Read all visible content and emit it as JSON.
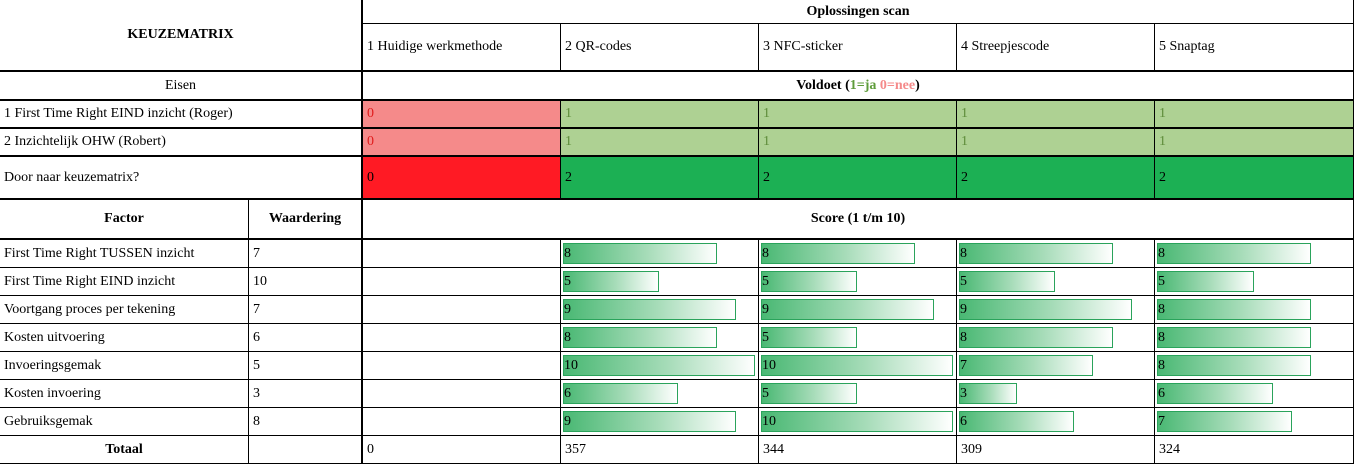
{
  "title": "KEUZEMATRIX",
  "solutions_header": "Oplossingen scan",
  "solutions": [
    "1 Huidige werkmethode",
    "2 QR-codes",
    "3 NFC-sticker",
    "4 Streepjescode",
    "5 Snaptag"
  ],
  "eisen_label": "Eisen",
  "voldoet": {
    "label": "Voldoet (",
    "ja": "1=ja",
    "space": " ",
    "nee": "0=nee",
    "close": ")"
  },
  "requirements": [
    {
      "name": "1 First Time Right EIND inzicht (Roger)",
      "values": [
        "0",
        "1",
        "1",
        "1",
        "1"
      ]
    },
    {
      "name": "2 Inzichtelijk OHW (Robert)",
      "values": [
        "0",
        "1",
        "1",
        "1",
        "1"
      ]
    }
  ],
  "door_naar": {
    "label": "Door naar keuzematrix?",
    "values": [
      "0",
      "2",
      "2",
      "2",
      "2"
    ]
  },
  "factor_header": "Factor",
  "waardering_header": "Waardering",
  "score_header": "Score (1 t/m 10)",
  "score_max": 10,
  "factors": [
    {
      "name": "First Time Right TUSSEN inzicht",
      "weight": "7",
      "scores": [
        8,
        8,
        8,
        8
      ]
    },
    {
      "name": "First Time Right EIND inzicht",
      "weight": "10",
      "scores": [
        5,
        5,
        5,
        5
      ]
    },
    {
      "name": "Voortgang proces per tekening",
      "weight": "7",
      "scores": [
        9,
        9,
        9,
        8
      ]
    },
    {
      "name": "Kosten uitvoering",
      "weight": "6",
      "scores": [
        8,
        5,
        8,
        8
      ]
    },
    {
      "name": "Invoeringsgemak",
      "weight": "5",
      "scores": [
        10,
        10,
        7,
        8
      ]
    },
    {
      "name": "Kosten invoering",
      "weight": "3",
      "scores": [
        6,
        5,
        3,
        6
      ]
    },
    {
      "name": "Gebruiksgemak",
      "weight": "8",
      "scores": [
        9,
        10,
        6,
        7
      ]
    }
  ],
  "totaal": {
    "label": "Totaal",
    "values": [
      "0",
      "357",
      "344",
      "309",
      "324"
    ]
  },
  "colors": {
    "red_light": "#f58a8a",
    "red_strong": "#ff1a24",
    "green_light": "#aed193",
    "green_strong": "#1cb054",
    "bar_border": "#2aa35b"
  }
}
